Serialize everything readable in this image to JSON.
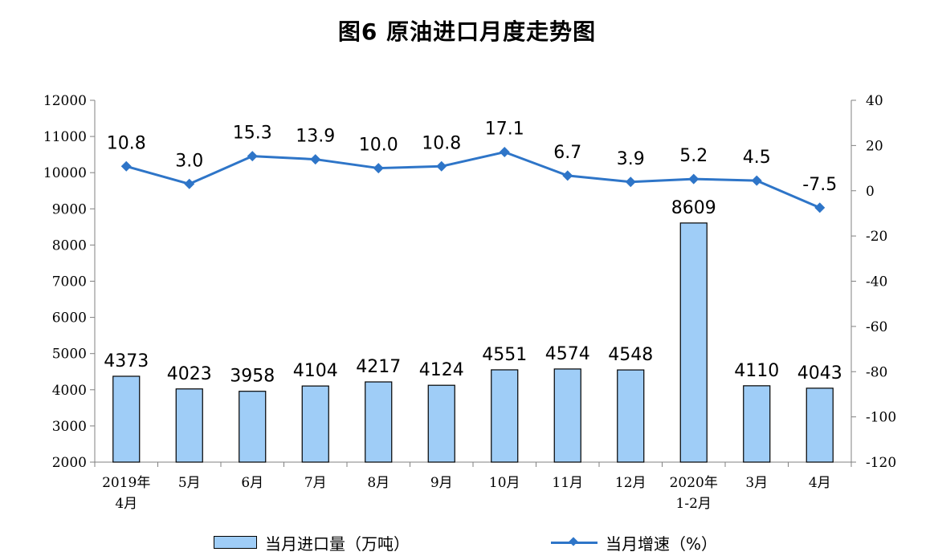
{
  "chart_data": {
    "type": "bar",
    "title": "图6  原油进口月度走势图",
    "categories": [
      [
        "2019年",
        "4月"
      ],
      [
        "5月"
      ],
      [
        "6月"
      ],
      [
        "7月"
      ],
      [
        "8月"
      ],
      [
        "9月"
      ],
      [
        "10月"
      ],
      [
        "11月"
      ],
      [
        "12月"
      ],
      [
        "2020年",
        "1-2月"
      ],
      [
        "3月"
      ],
      [
        "4月"
      ]
    ],
    "series": [
      {
        "name": "当月进口量（万吨）",
        "type": "bar",
        "axis": "left",
        "values": [
          4373,
          4023,
          3958,
          4104,
          4217,
          4124,
          4551,
          4574,
          4548,
          8609,
          4110,
          4043
        ],
        "labels": [
          "4373",
          "4023",
          "3958",
          "4104",
          "4217",
          "4124",
          "4551",
          "4574",
          "4548",
          "8609",
          "4110",
          "4043"
        ]
      },
      {
        "name": "当月增速（%）",
        "type": "line",
        "axis": "right",
        "values": [
          10.8,
          3.0,
          15.3,
          13.9,
          10.0,
          10.8,
          17.1,
          6.7,
          3.9,
          5.2,
          4.5,
          -7.5
        ],
        "labels": [
          "10.8",
          "3.0",
          "15.3",
          "13.9",
          "10.0",
          "10.8",
          "17.1",
          "6.7",
          "3.9",
          "5.2",
          "4.5",
          "-7.5"
        ]
      }
    ],
    "y_left": {
      "range": [
        2000,
        12000
      ],
      "ticks": [
        "2000",
        "3000",
        "4000",
        "5000",
        "6000",
        "7000",
        "8000",
        "9000",
        "10000",
        "11000",
        "12000"
      ]
    },
    "y_right": {
      "range": [
        -120,
        40
      ],
      "ticks": [
        "-120",
        "-100",
        "-80",
        "-60",
        "-40",
        "-20",
        "0",
        "20",
        "40"
      ]
    },
    "grid": false,
    "legend_position": "bottom",
    "colors": {
      "bar_fill": "#9fcdf7",
      "bar_stroke": "#000000",
      "line": "#2e75c8",
      "axis": "#808080"
    }
  }
}
